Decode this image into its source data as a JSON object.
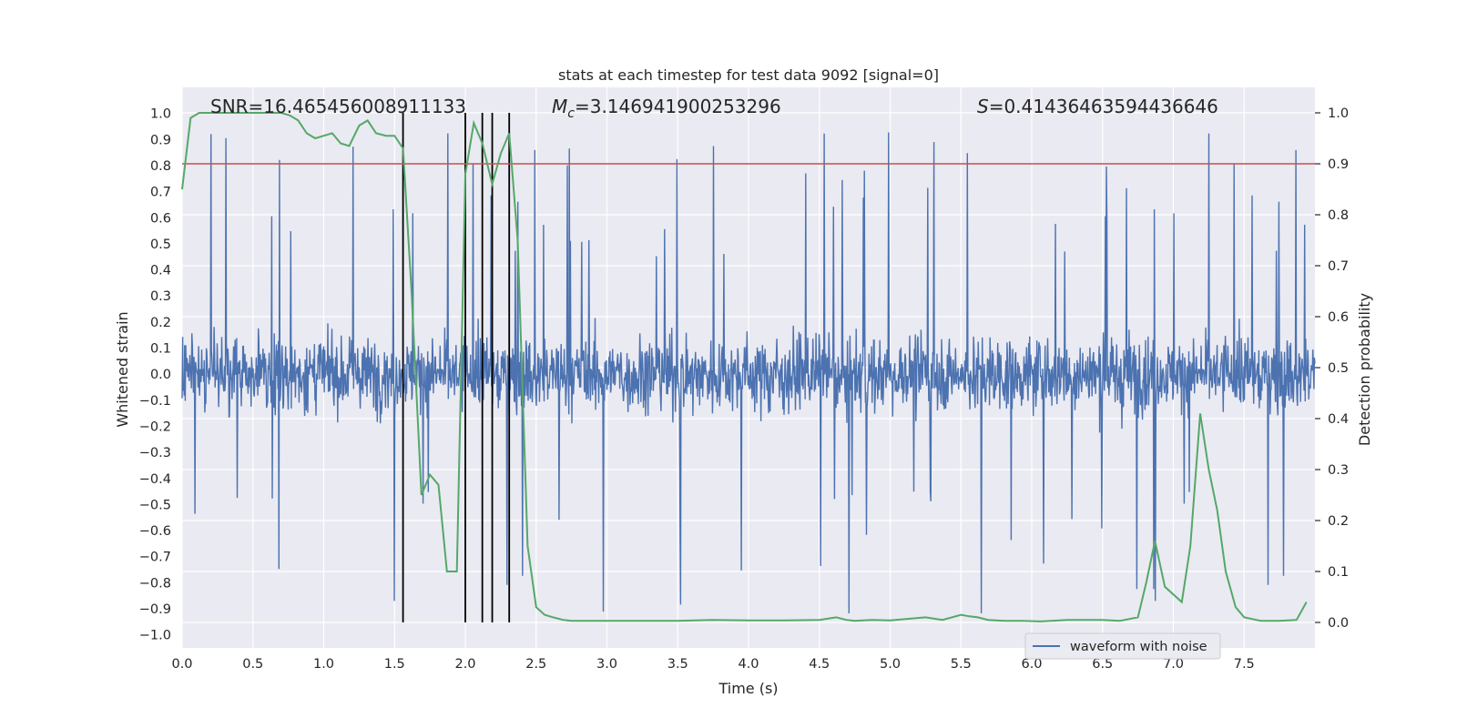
{
  "chart_data": {
    "type": "line",
    "title": "stats at each timestep for test data 9092 [signal=0]",
    "xlabel": "Time (s)",
    "ylabel": "Whitened strain",
    "y2label": "Detection probability",
    "xlim": [
      0,
      8
    ],
    "ylim": [
      -1.05,
      1.1
    ],
    "y2lim": [
      -0.05,
      1.05
    ],
    "xticks": [
      0.0,
      0.5,
      1.0,
      1.5,
      2.0,
      2.5,
      3.0,
      3.5,
      4.0,
      4.5,
      5.0,
      5.5,
      6.0,
      6.5,
      7.0,
      7.5
    ],
    "xtick_labels": [
      "0.0",
      "0.5",
      "1.0",
      "1.5",
      "2.0",
      "2.5",
      "3.0",
      "3.5",
      "4.0",
      "4.5",
      "5.0",
      "5.5",
      "6.0",
      "6.5",
      "7.0",
      "7.5"
    ],
    "yticks": [
      1.0,
      0.9,
      0.8,
      0.7,
      0.6,
      0.5,
      0.4,
      0.3,
      0.2,
      0.1,
      0.0,
      -0.1,
      -0.2,
      -0.3,
      -0.4,
      -0.5,
      -0.6,
      -0.7,
      -0.8,
      -0.9,
      -1.0
    ],
    "ytick_labels": [
      "1.0",
      "0.9",
      "0.8",
      "0.7",
      "0.6",
      "0.5",
      "0.4",
      "0.3",
      "0.2",
      "0.1",
      "0.0",
      "−0.1",
      "−0.2",
      "−0.3",
      "−0.4",
      "−0.5",
      "−0.6",
      "−0.7",
      "−0.8",
      "−0.9",
      "−1.0"
    ],
    "y2ticks": [
      1.0,
      0.9,
      0.8,
      0.7,
      0.6,
      0.5,
      0.4,
      0.3,
      0.2,
      0.1,
      0.0
    ],
    "y2tick_labels": [
      "1.0",
      "0.9",
      "0.8",
      "0.7",
      "0.6",
      "0.5",
      "0.4",
      "0.3",
      "0.2",
      "0.1",
      "0.0"
    ],
    "grid": true,
    "legend_position": "lower-right",
    "annotations": {
      "snr": "SNR=16.465456008911133",
      "mc_symbol": "M",
      "mc_sub": "c",
      "mc_value": "=3.146941900253296",
      "s_symbol": "S",
      "s_value": "=0.41436463594436646"
    },
    "threshold": 0.9,
    "vertical_lines_x": [
      1.56,
      2.0,
      2.12,
      2.19,
      2.31
    ],
    "series": [
      {
        "name": "waveform with noise",
        "axis": "left",
        "color": "#4c72b0",
        "description_values": {
          "typical_band": [
            -0.42,
            0.42
          ],
          "samples_per_second": 512,
          "total_seconds": 8
        }
      },
      {
        "axis": "right",
        "color": "#55a868",
        "x": [
          0.0,
          0.06,
          0.12,
          0.2,
          0.3,
          0.4,
          0.5,
          0.6,
          0.7,
          0.76,
          0.82,
          0.88,
          0.94,
          1.0,
          1.06,
          1.12,
          1.18,
          1.25,
          1.31,
          1.37,
          1.44,
          1.5,
          1.56,
          1.62,
          1.69,
          1.75,
          1.81,
          1.87,
          1.94,
          2.0,
          2.06,
          2.12,
          2.19,
          2.25,
          2.31,
          2.37,
          2.44,
          2.5,
          2.56,
          2.62,
          2.69,
          2.75,
          2.81,
          2.87,
          2.94,
          3.0,
          3.25,
          3.5,
          3.75,
          4.0,
          4.25,
          4.5,
          4.62,
          4.69,
          4.75,
          4.87,
          5.0,
          5.25,
          5.37,
          5.5,
          5.56,
          5.62,
          5.69,
          5.81,
          5.94,
          6.06,
          6.25,
          6.5,
          6.62,
          6.75,
          6.81,
          6.87,
          6.94,
          7.06,
          7.12,
          7.19,
          7.25,
          7.31,
          7.37,
          7.44,
          7.5,
          7.62,
          7.75,
          7.87,
          7.94
        ],
        "values": [
          0.85,
          0.99,
          1.0,
          1.0,
          1.0,
          1.0,
          1.0,
          1.0,
          1.0,
          0.995,
          0.985,
          0.96,
          0.95,
          0.955,
          0.96,
          0.94,
          0.935,
          0.975,
          0.985,
          0.96,
          0.955,
          0.955,
          0.93,
          0.65,
          0.25,
          0.29,
          0.27,
          0.1,
          0.1,
          0.88,
          0.98,
          0.94,
          0.86,
          0.92,
          0.96,
          0.75,
          0.15,
          0.03,
          0.015,
          0.01,
          0.005,
          0.003,
          0.003,
          0.003,
          0.003,
          0.003,
          0.003,
          0.003,
          0.005,
          0.004,
          0.004,
          0.005,
          0.01,
          0.005,
          0.003,
          0.005,
          0.004,
          0.01,
          0.005,
          0.015,
          0.012,
          0.01,
          0.005,
          0.003,
          0.003,
          0.002,
          0.005,
          0.005,
          0.003,
          0.01,
          0.08,
          0.16,
          0.07,
          0.04,
          0.15,
          0.41,
          0.3,
          0.22,
          0.1,
          0.03,
          0.01,
          0.003,
          0.003,
          0.005,
          0.04
        ]
      }
    ]
  }
}
